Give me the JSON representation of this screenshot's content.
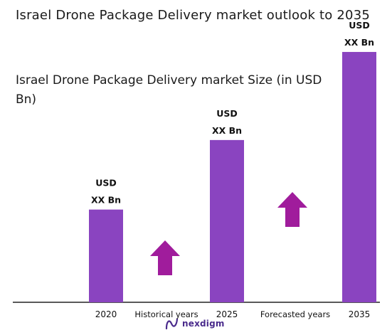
{
  "page": {
    "title": "Israel Drone Package Delivery market outlook to 2035",
    "brand": "nexdigm"
  },
  "chart_data": {
    "type": "bar",
    "title": "Israel Drone Package Delivery market Size (in USD Bn)",
    "categories": [
      "2020",
      "2025",
      "2035"
    ],
    "values": [
      1.0,
      1.75,
      2.7
    ],
    "value_labels": [
      [
        "USD",
        "XX Bn"
      ],
      [
        "USD",
        "XX Bn"
      ],
      [
        "USD",
        "XX Bn"
      ]
    ],
    "period_labels": [
      "Historical years",
      "Forecasted years"
    ],
    "bar_color": "#8a44c0",
    "arrow_color": "#a01c9c",
    "axis_color": "#222222",
    "ylim": [
      0,
      2.8
    ],
    "grid": false,
    "legend": "none"
  }
}
